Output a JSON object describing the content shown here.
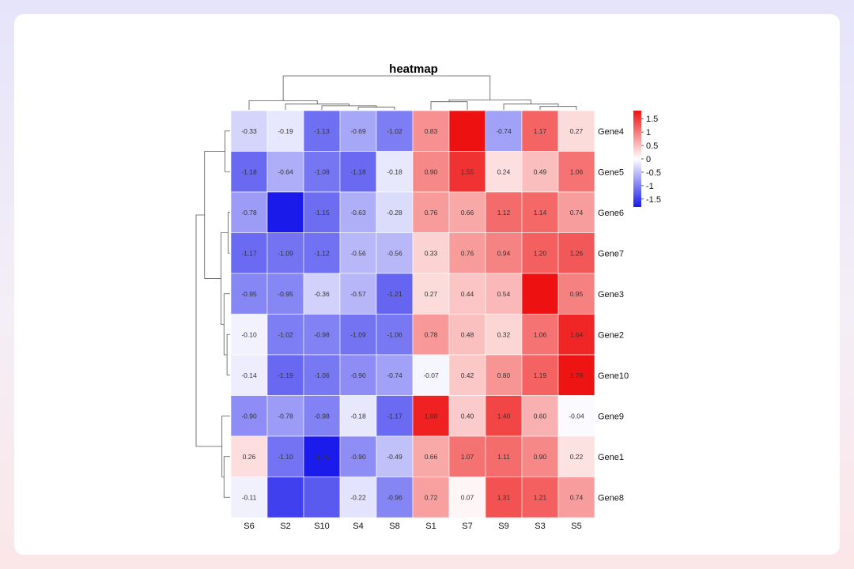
{
  "chart_data": {
    "type": "heatmap",
    "title": "heatmap",
    "columns": [
      "S6",
      "S2",
      "S10",
      "S4",
      "S8",
      "S1",
      "S7",
      "S9",
      "S3",
      "S5"
    ],
    "rows": [
      "Gene4",
      "Gene5",
      "Gene6",
      "Gene7",
      "Gene3",
      "Gene2",
      "Gene10",
      "Gene9",
      "Gene1",
      "Gene8"
    ],
    "values": [
      [
        -0.33,
        -0.19,
        -1.13,
        -0.69,
        -1.02,
        0.83,
        1.8,
        -0.74,
        1.17,
        0.27
      ],
      [
        -1.18,
        -0.64,
        -1.08,
        -1.18,
        -0.18,
        0.9,
        1.55,
        0.24,
        0.49,
        1.06
      ],
      [
        -0.78,
        -1.8,
        -1.15,
        -0.63,
        -0.28,
        0.76,
        0.66,
        1.12,
        1.14,
        0.74
      ],
      [
        -1.17,
        -1.09,
        -1.12,
        -0.56,
        -0.56,
        0.33,
        0.76,
        0.94,
        1.2,
        1.26
      ],
      [
        -0.95,
        -0.95,
        -0.36,
        -0.57,
        -1.21,
        0.27,
        0.44,
        0.54,
        1.8,
        0.95
      ],
      [
        -0.1,
        -1.02,
        -0.98,
        -1.09,
        -1.06,
        0.78,
        0.48,
        0.32,
        1.06,
        1.64
      ],
      [
        -0.14,
        -1.19,
        -1.06,
        -0.9,
        -0.74,
        -0.07,
        0.42,
        0.8,
        1.19,
        1.78
      ],
      [
        -0.9,
        -0.78,
        -0.98,
        -0.18,
        -1.17,
        1.68,
        0.4,
        1.4,
        0.6,
        -0.04
      ],
      [
        0.26,
        -1.1,
        -1.79,
        -0.9,
        -0.49,
        0.66,
        1.07,
        1.11,
        0.9,
        0.22
      ],
      [
        -0.11,
        -1.5,
        -1.3,
        -0.22,
        -0.96,
        0.72,
        0.07,
        1.31,
        1.21,
        0.74
      ]
    ],
    "cell_labels": [
      [
        "-0.33",
        "-0.19",
        "-1.13",
        "-0.69",
        "-1.02",
        "0.83",
        "",
        "-0.74",
        "1.17",
        "0.27"
      ],
      [
        "-1.18",
        "-0.64",
        "-1.08",
        "-1.18",
        "-0.18",
        "0.90",
        "1.55",
        "0.24",
        "0.49",
        "1.06"
      ],
      [
        "-0.78",
        "",
        "-1.15",
        "-0.63",
        "-0.28",
        "0.76",
        "0.66",
        "1.12",
        "1.14",
        "0.74"
      ],
      [
        "-1.17",
        "-1.09",
        "-1.12",
        "-0.56",
        "-0.56",
        "0.33",
        "0.76",
        "0.94",
        "1.20",
        "1.26"
      ],
      [
        "-0.95",
        "-0.95",
        "-0.36",
        "-0.57",
        "-1.21",
        "0.27",
        "0.44",
        "0.54",
        "",
        "0.95"
      ],
      [
        "-0.10",
        "-1.02",
        "-0.98",
        "-1.09",
        "-1.06",
        "0.78",
        "0.48",
        "0.32",
        "1.06",
        "1.64"
      ],
      [
        "-0.14",
        "-1.19",
        "-1.06",
        "-0.90",
        "-0.74",
        "-0.07",
        "0.42",
        "0.80",
        "1.19",
        "1.78"
      ],
      [
        "-0.90",
        "-0.78",
        "-0.98",
        "-0.18",
        "-1.17",
        "1.68",
        "0.40",
        "1.40",
        "0.60",
        "-0.04"
      ],
      [
        "0.26",
        "-1.10",
        "-1.79",
        "-0.90",
        "-0.49",
        "0.66",
        "1.07",
        "1.11",
        "0.90",
        "0.22"
      ],
      [
        "-0.11",
        "",
        "",
        "-0.22",
        "-0.96",
        "0.72",
        "0.07",
        "1.31",
        "1.21",
        "0.74"
      ]
    ],
    "color_scale": {
      "min": -1.8,
      "max": 1.8,
      "low": "#1a1aeb",
      "mid": "#ffffff",
      "high": "#ee1111"
    },
    "legend": {
      "position": "top-right",
      "ticks": [
        1.5,
        1,
        0.5,
        0,
        -0.5,
        -1,
        -1.5
      ],
      "tick_labels": [
        "1.5",
        "1",
        "0.5",
        "0",
        "-0.5",
        "-1",
        "-1.5"
      ]
    },
    "column_dendrogram": true,
    "row_dendrogram": true
  }
}
